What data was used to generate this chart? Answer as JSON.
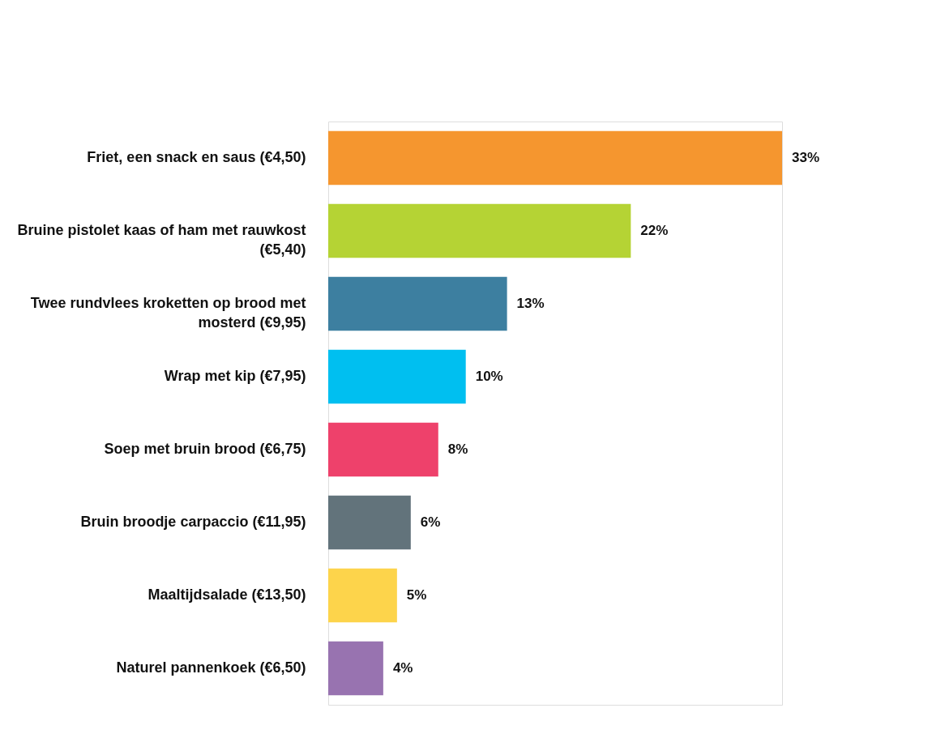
{
  "chart_data": {
    "type": "bar",
    "orientation": "horizontal",
    "categories": [
      "Friet, een snack en saus (€4,50)",
      "Bruine pistolet kaas of ham met rauwkost (€5,40)",
      "Twee rundvlees kroketten op brood met mosterd (€9,95)",
      "Wrap met kip (€7,95)",
      "Soep met bruin brood (€6,75)",
      "Bruin broodje carpaccio (€11,95)",
      "Maaltijdsalade (€13,50)",
      "Naturel pannenkoek (€6,50)"
    ],
    "values": [
      33,
      22,
      13,
      10,
      8,
      6,
      5,
      4
    ],
    "value_labels": [
      "33%",
      "22%",
      "13%",
      "10%",
      "8%",
      "6%",
      "5%",
      "4%"
    ],
    "colors": [
      "#f5962f",
      "#b5d334",
      "#3d7fa0",
      "#00bff0",
      "#ee416b",
      "#62737b",
      "#fdd44b",
      "#9873b0"
    ],
    "grid": false
  }
}
